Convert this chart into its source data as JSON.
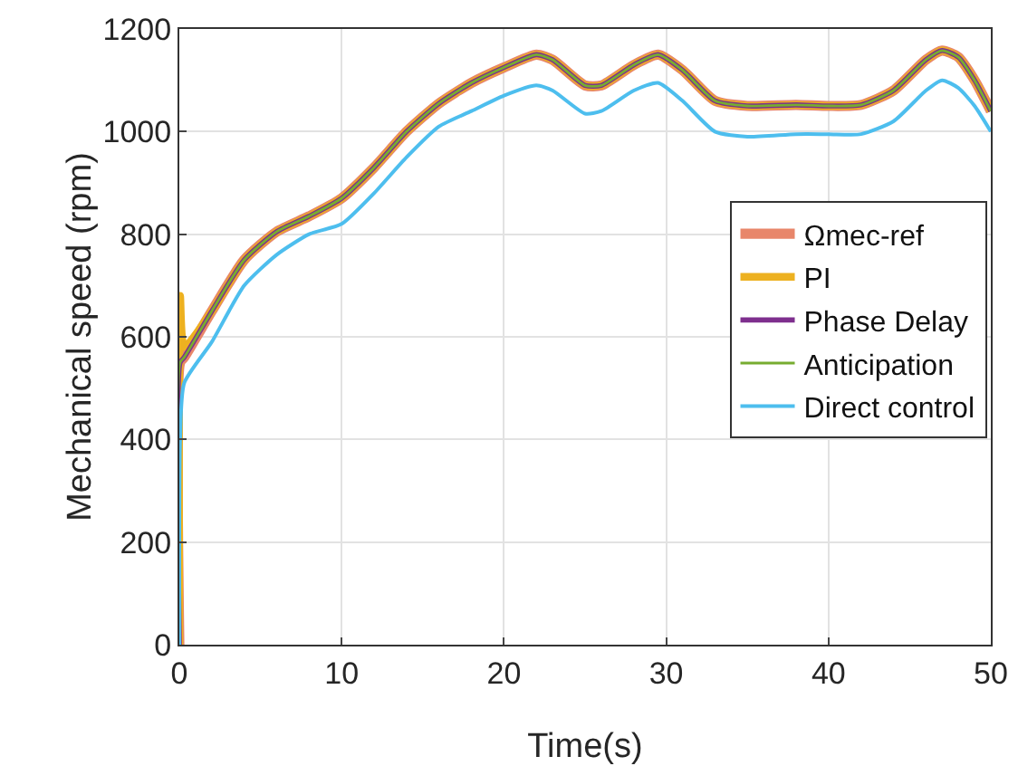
{
  "chart_data": {
    "type": "line",
    "xlabel": "Time(s)",
    "ylabel": "Mechanical speed (rpm)",
    "xlim": [
      0,
      50
    ],
    "xticks": [
      0,
      10,
      20,
      30,
      40,
      50
    ],
    "ylim": [
      0,
      1200
    ],
    "yticks": [
      0,
      200,
      400,
      600,
      800,
      1000,
      1200
    ],
    "grid": true,
    "legend": "right",
    "line_style": "solid",
    "marker": "none",
    "x": [
      0,
      0.05,
      0.3,
      2,
      4,
      6,
      8,
      10,
      12,
      14,
      16,
      18,
      20,
      22,
      23,
      25,
      26,
      28,
      29.5,
      31,
      33,
      35,
      38,
      40,
      42,
      44,
      46,
      47,
      48,
      49,
      50
    ],
    "series": [
      {
        "name": "Ωmec-ref",
        "color": "#e8866a",
        "values": [
          0,
          550,
          560,
          650,
          750,
          805,
          835,
          870,
          930,
          1000,
          1055,
          1095,
          1125,
          1150,
          1140,
          1090,
          1090,
          1130,
          1150,
          1120,
          1060,
          1050,
          1052,
          1050,
          1052,
          1080,
          1140,
          1158,
          1145,
          1100,
          1040
        ]
      },
      {
        "name": "PI",
        "color": "#edb120",
        "values": [
          0,
          680,
          580,
          650,
          750,
          805,
          835,
          870,
          930,
          1000,
          1055,
          1095,
          1125,
          1150,
          1140,
          1090,
          1090,
          1130,
          1150,
          1120,
          1060,
          1050,
          1052,
          1050,
          1052,
          1080,
          1140,
          1158,
          1145,
          1100,
          1040
        ]
      },
      {
        "name": "Phase Delay",
        "color": "#7e2f8e",
        "values": [
          0,
          550,
          560,
          650,
          750,
          805,
          835,
          870,
          930,
          1000,
          1055,
          1095,
          1125,
          1150,
          1140,
          1090,
          1090,
          1130,
          1150,
          1120,
          1060,
          1050,
          1052,
          1050,
          1052,
          1080,
          1140,
          1158,
          1145,
          1100,
          1040
        ]
      },
      {
        "name": "Anticipation",
        "color": "#77ac30",
        "values": [
          0,
          550,
          560,
          650,
          750,
          805,
          835,
          870,
          930,
          1000,
          1055,
          1095,
          1125,
          1150,
          1140,
          1090,
          1090,
          1130,
          1150,
          1120,
          1060,
          1050,
          1052,
          1050,
          1052,
          1080,
          1140,
          1158,
          1145,
          1100,
          1040
        ]
      },
      {
        "name": "Direct control",
        "color": "#4dbeee",
        "values": [
          0,
          400,
          510,
          590,
          700,
          760,
          800,
          820,
          880,
          950,
          1010,
          1040,
          1070,
          1090,
          1080,
          1035,
          1040,
          1080,
          1095,
          1060,
          1000,
          990,
          995,
          995,
          995,
          1020,
          1080,
          1100,
          1085,
          1050,
          1000
        ]
      }
    ]
  }
}
